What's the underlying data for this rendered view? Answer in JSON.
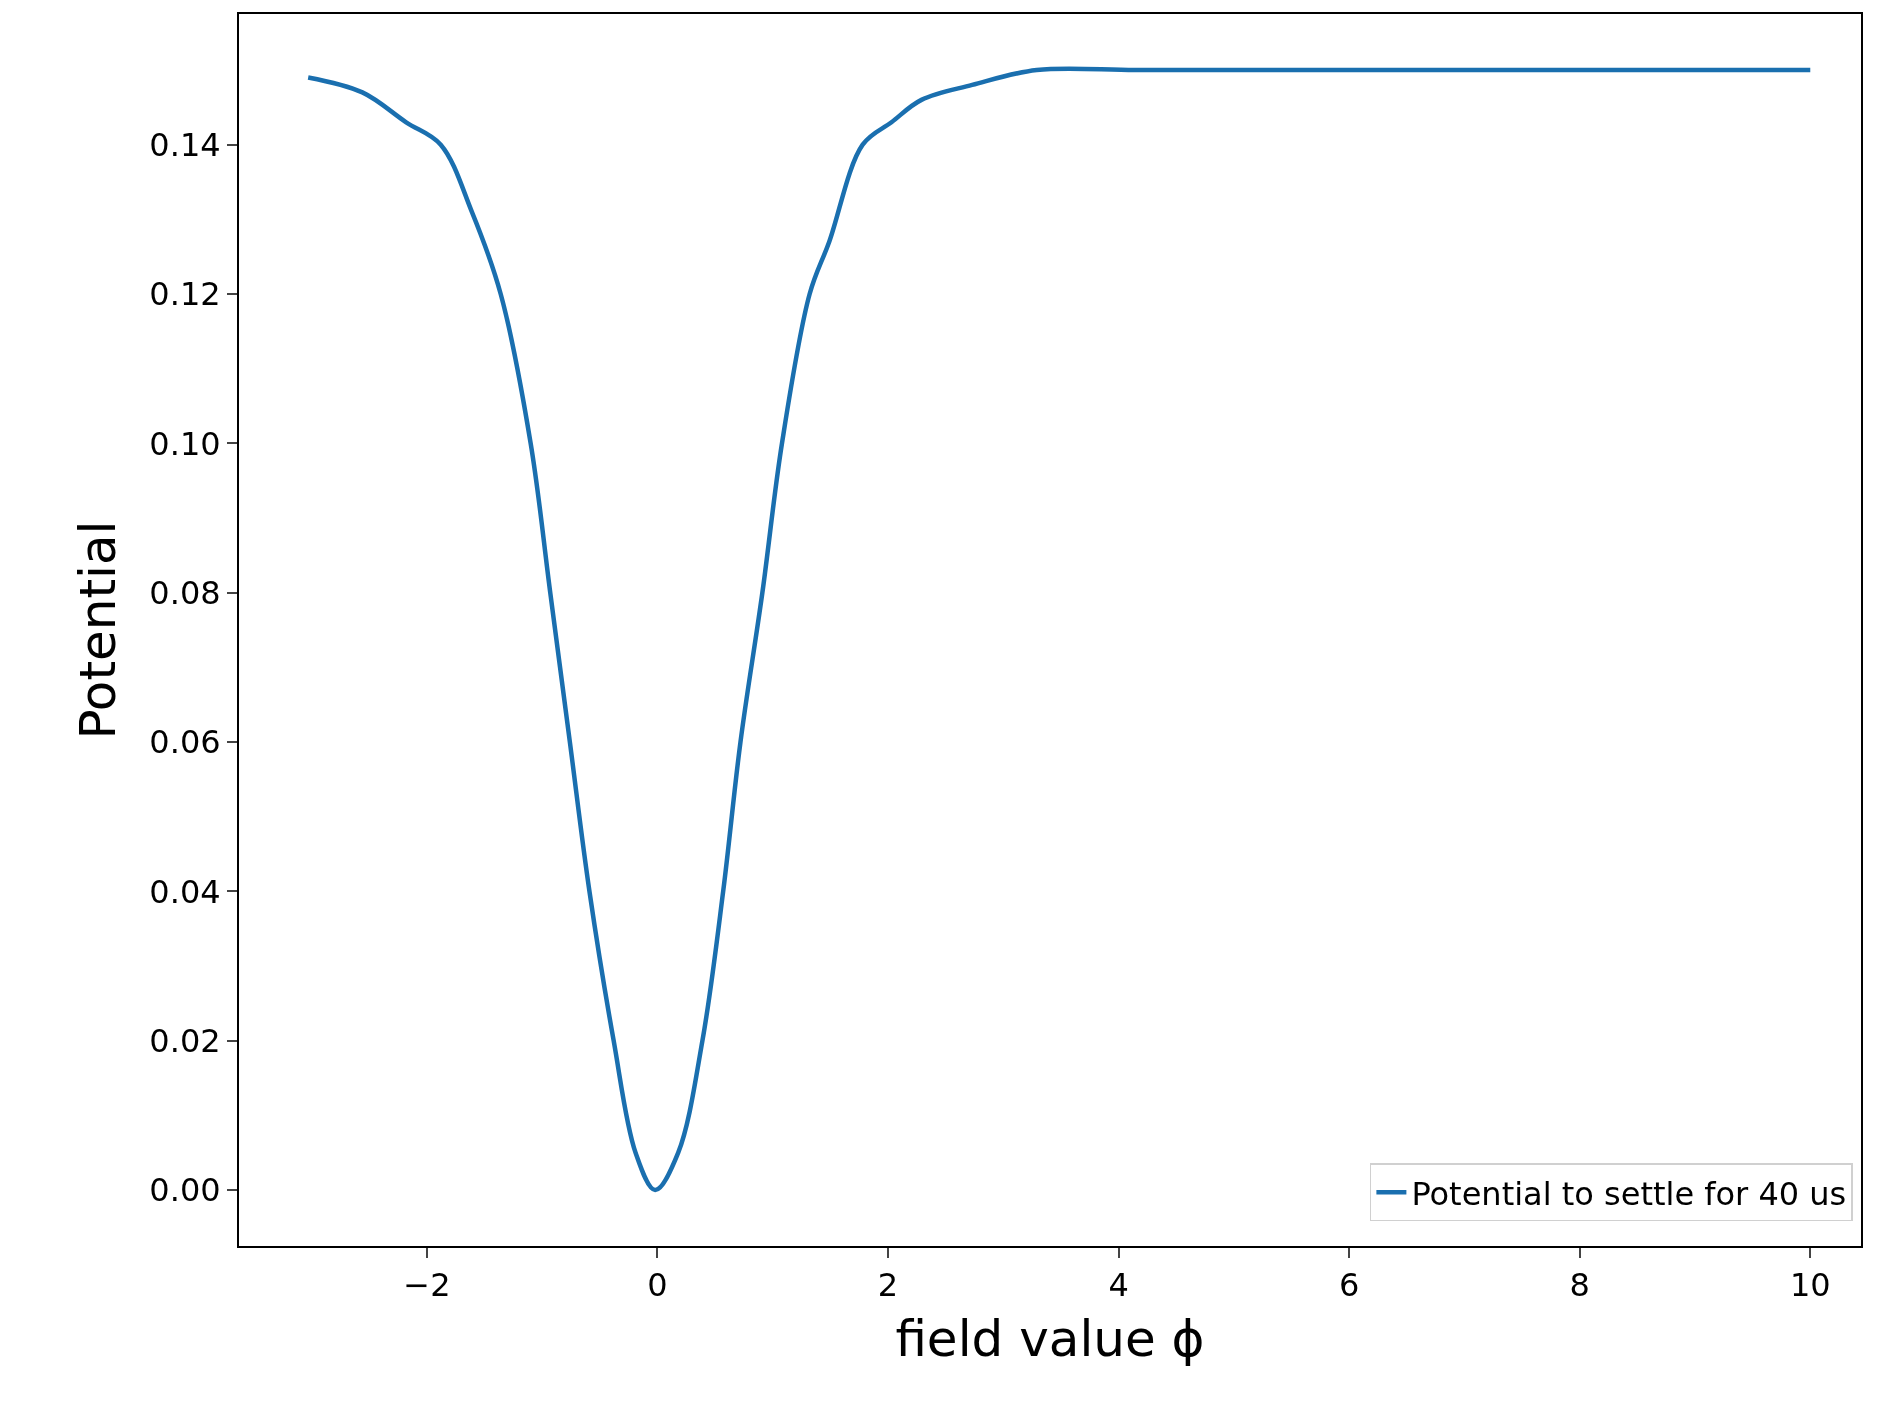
{
  "chart_data": {
    "type": "line",
    "xlabel": "field value ϕ",
    "ylabel": "Potential",
    "x": [
      -3.03,
      -2.56,
      -2.18,
      -1.88,
      -1.61,
      -1.36,
      -1.1,
      -0.93,
      -0.76,
      -0.59,
      -0.38,
      -0.19,
      -0.02,
      0.18,
      0.39,
      0.57,
      0.72,
      0.91,
      1.08,
      1.32,
      1.49,
      1.78,
      2.03,
      2.29,
      2.73,
      3.29,
      4.14,
      5,
      6,
      7,
      8,
      9,
      10
    ],
    "series": [
      {
        "name": "Potential to settle for 40 us",
        "color": "#1a6faf",
        "values": [
          0.149,
          0.147,
          0.143,
          0.14,
          0.131,
          0.12,
          0.1,
          0.08,
          0.06,
          0.04,
          0.02,
          0.005,
          0.0,
          0.005,
          0.02,
          0.04,
          0.06,
          0.08,
          0.1,
          0.12,
          0.127,
          0.14,
          0.143,
          0.146,
          0.148,
          0.15,
          0.15,
          0.15,
          0.15,
          0.15,
          0.15,
          0.15,
          0.15
        ]
      }
    ],
    "xlim": [
      -3.63,
      10.44
    ],
    "ylim": [
      -0.0075,
      0.1575
    ],
    "xticks": [
      {
        "value": -2,
        "label": "−2"
      },
      0,
      2,
      4,
      6,
      8,
      10
    ],
    "yticks": [
      {
        "value": 0,
        "label": "0.00"
      },
      {
        "value": 0.02,
        "label": "0.02"
      },
      {
        "value": 0.04,
        "label": "0.04"
      },
      {
        "value": 0.06,
        "label": "0.06"
      },
      {
        "value": 0.08,
        "label": "0.08"
      },
      {
        "value": 0.1,
        "label": "0.10"
      },
      {
        "value": 0.12,
        "label": "0.12"
      },
      {
        "value": 0.14,
        "label": "0.14"
      }
    ],
    "legend": "bottom right",
    "marker": "none",
    "line_style": "solid"
  }
}
